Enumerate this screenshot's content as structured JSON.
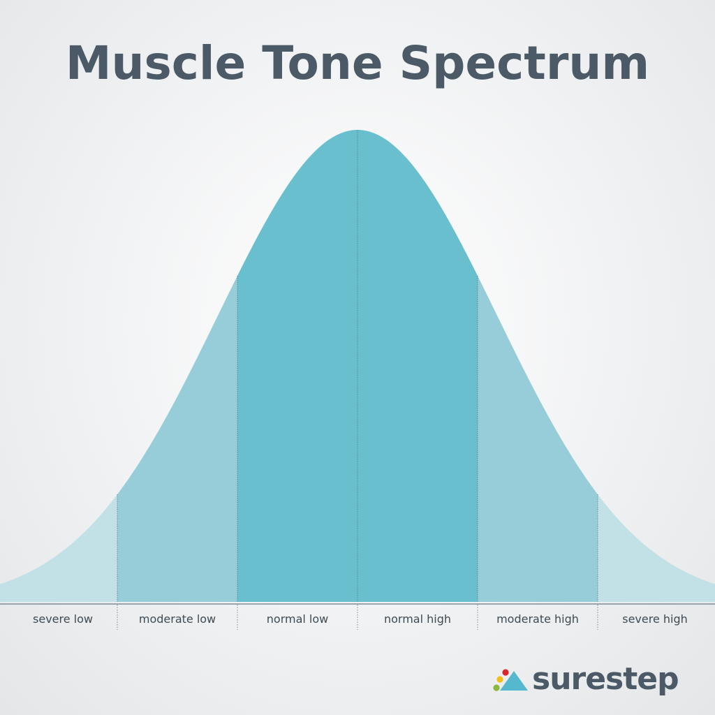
{
  "title": "Muscle Tone Spectrum",
  "categories": [
    {
      "label": "severe low",
      "fill": "#c2e1e6"
    },
    {
      "label": "moderate low",
      "fill": "#96cdd9"
    },
    {
      "label": "normal low",
      "fill": "#69bfcd"
    },
    {
      "label": "normal high",
      "fill": "#69bfcd"
    },
    {
      "label": "moderate high",
      "fill": "#96cdd9"
    },
    {
      "label": "severe high",
      "fill": "#c2e1e6"
    }
  ],
  "colors": {
    "title": "#4b5a66",
    "axis": "#6d7880",
    "divider": "#5a7680",
    "label": "#3f4a52",
    "logo_triangle": "#56b8cf",
    "logo_dot_red": "#d8262b",
    "logo_dot_yellow": "#f2c018",
    "logo_dot_green": "#8ab83c"
  },
  "brand": {
    "name": "surestep",
    "icon": "surestep-logo-mark-icon"
  }
}
